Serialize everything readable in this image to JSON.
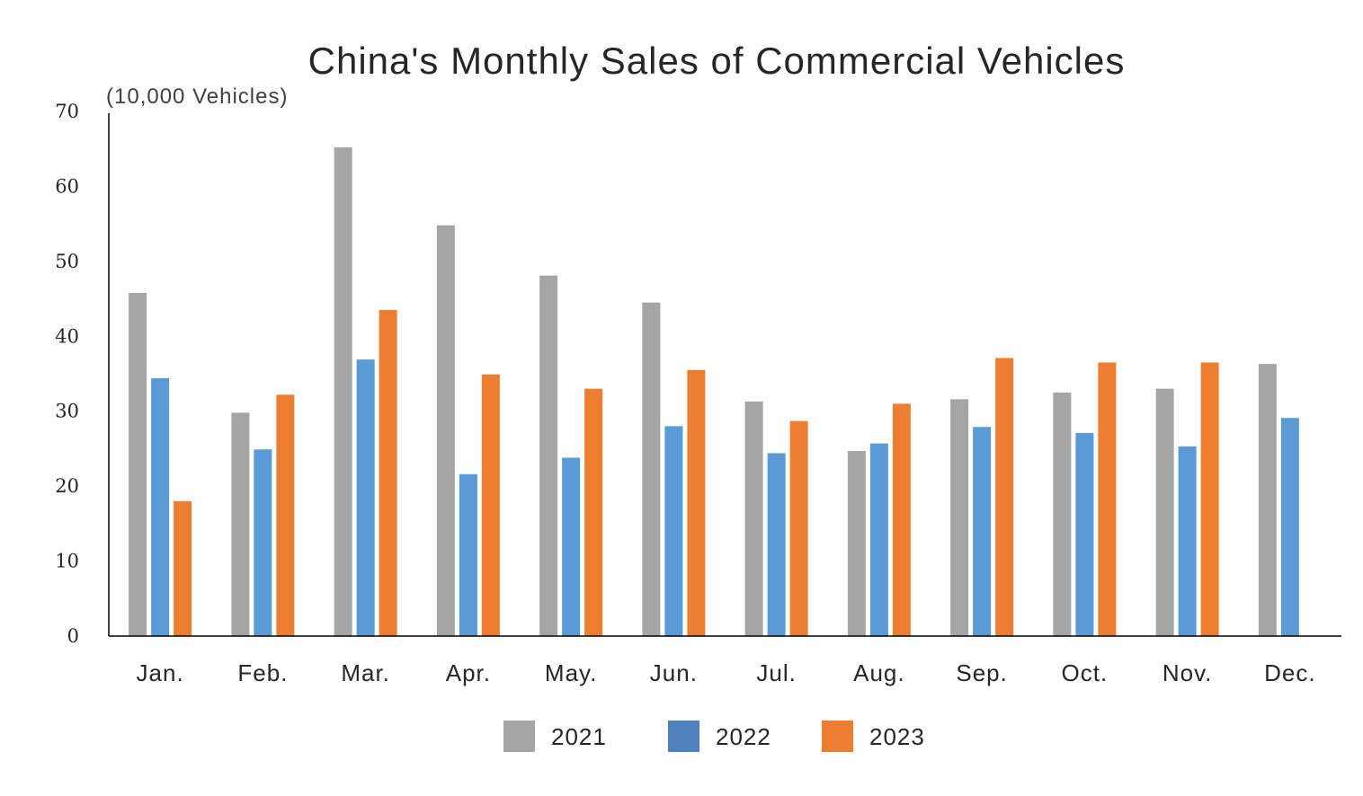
{
  "chart_data": {
    "type": "bar",
    "title": "China's Monthly Sales of Commercial Vehicles",
    "ylabel": "(10,000 Vehicles)",
    "xlabel": "",
    "ylim": [
      0,
      70
    ],
    "yticks": [
      0,
      10,
      20,
      30,
      40,
      50,
      60,
      70
    ],
    "grid": false,
    "legend_position": "bottom",
    "categories": [
      "Jan.",
      "Feb.",
      "Mar.",
      "Apr.",
      "May.",
      "Jun.",
      "Jul.",
      "Aug.",
      "Sep.",
      "Oct.",
      "Nov.",
      "Dec."
    ],
    "series": [
      {
        "name": "2021",
        "color": "#a5a5a5",
        "legend_color": "#a5a5a5",
        "values": [
          45.8,
          29.8,
          65.2,
          54.8,
          48.1,
          44.5,
          31.3,
          24.7,
          31.6,
          32.5,
          33.0,
          36.3
        ]
      },
      {
        "name": "2022",
        "color": "#5b9bd5",
        "legend_color": "#4f81bd",
        "values": [
          34.4,
          24.9,
          36.9,
          21.6,
          23.8,
          28.0,
          24.4,
          25.7,
          27.9,
          27.1,
          25.3,
          29.1
        ]
      },
      {
        "name": "2023",
        "color": "#ed7d31",
        "legend_color": "#ed7d31",
        "values": [
          18.0,
          32.2,
          43.5,
          34.9,
          33.0,
          35.5,
          28.7,
          31.0,
          37.1,
          36.5,
          36.5,
          null
        ]
      }
    ]
  }
}
